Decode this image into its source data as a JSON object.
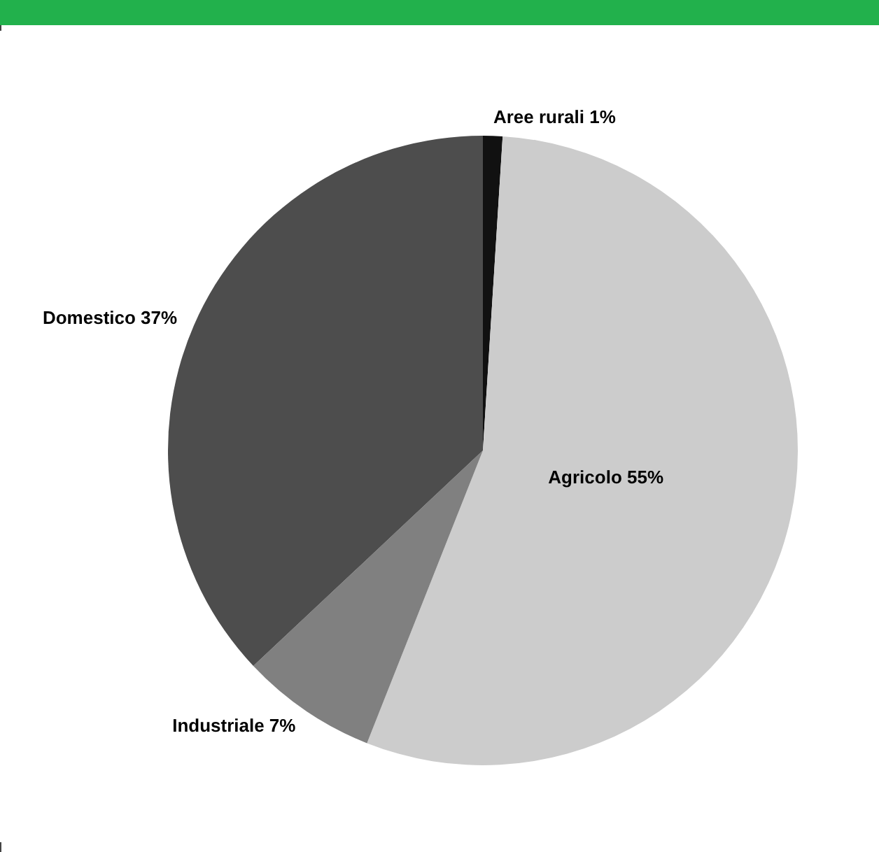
{
  "chart_data": {
    "type": "pie",
    "categories": [
      "Aree rurali",
      "Agricolo",
      "Industriale",
      "Domestico"
    ],
    "values": [
      1,
      55,
      7,
      37
    ],
    "colors": [
      "#111111",
      "#cccccc",
      "#808080",
      "#4d4d4d"
    ],
    "value_labels": [
      "1%",
      "55%",
      "7%",
      "37%"
    ]
  }
}
